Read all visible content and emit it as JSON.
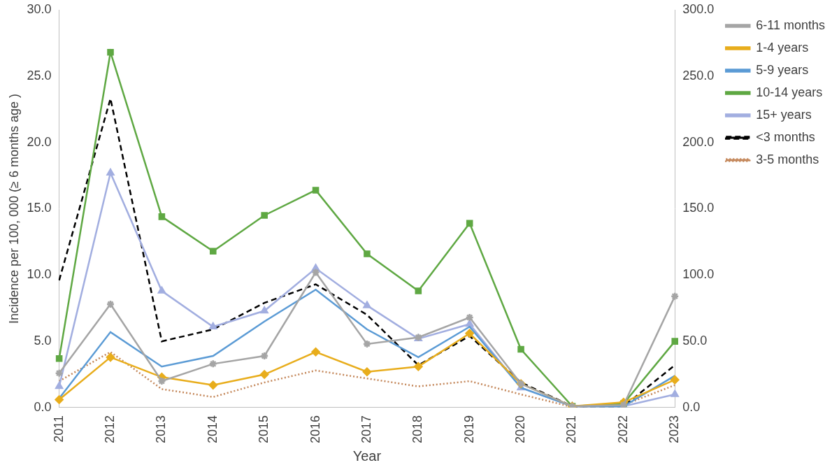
{
  "chart_data": {
    "type": "line",
    "x_label": "Year",
    "y_label": "Incidence per 100, 000 (≥ 6 months age )",
    "categories": [
      "2011",
      "2012",
      "2013",
      "2014",
      "2015",
      "2016",
      "2017",
      "2018",
      "2019",
      "2020",
      "2021",
      "2022",
      "2023"
    ],
    "ylim": [
      0,
      30
    ],
    "yticks": [
      {
        "value": 0,
        "label": "0.0"
      },
      {
        "value": 5,
        "label": "5.0"
      },
      {
        "value": 10,
        "label": "10.0"
      },
      {
        "value": 15,
        "label": "15.0"
      },
      {
        "value": 20,
        "label": "20.0"
      },
      {
        "value": 25,
        "label": "25.0"
      },
      {
        "value": 30,
        "label": "30.0"
      }
    ],
    "y2lim": [
      0,
      300
    ],
    "y2ticks": [
      {
        "value": 0,
        "label": "0.0"
      },
      {
        "value": 50,
        "label": "50.0"
      },
      {
        "value": 100,
        "label": "100.0"
      },
      {
        "value": 150,
        "label": "150.0"
      },
      {
        "value": 200,
        "label": "200.0"
      },
      {
        "value": 250,
        "label": "250.0"
      },
      {
        "value": 300,
        "label": "300.0"
      }
    ],
    "grid": false,
    "legend": "right",
    "series": [
      {
        "name": "6-11 months",
        "color": "#a5a5a5",
        "marker": "star",
        "line_style": "solid",
        "values": [
          2.6,
          7.8,
          2.0,
          3.3,
          3.9,
          10.2,
          4.8,
          5.3,
          6.8,
          1.8,
          0.1,
          0.2,
          8.4
        ]
      },
      {
        "name": "1-4 years",
        "color": "#e8ad1c",
        "marker": "diamond",
        "line_style": "solid",
        "values": [
          0.6,
          3.8,
          2.3,
          1.7,
          2.5,
          4.2,
          2.7,
          3.1,
          5.6,
          1.8,
          0.1,
          0.4,
          2.1
        ]
      },
      {
        "name": "5-9 years",
        "color": "#5b9bd5",
        "marker": "none",
        "line_style": "solid",
        "values": [
          0.7,
          5.7,
          3.1,
          3.9,
          6.5,
          8.9,
          5.9,
          3.8,
          6.1,
          1.5,
          0.1,
          0.1,
          2.4
        ]
      },
      {
        "name": "10-14 years",
        "color": "#5fa843",
        "marker": "square",
        "line_style": "solid",
        "values": [
          3.7,
          26.8,
          14.4,
          11.8,
          14.5,
          16.4,
          11.6,
          8.8,
          13.9,
          4.4,
          0.1,
          0.3,
          5.0
        ]
      },
      {
        "name": "15+ years",
        "color": "#a2aee0",
        "marker": "triangle",
        "line_style": "solid",
        "values": [
          1.6,
          17.7,
          8.8,
          6.1,
          7.3,
          10.5,
          7.7,
          5.2,
          6.3,
          1.5,
          0.1,
          0.1,
          1.0
        ]
      },
      {
        "name": "<3 months",
        "color": "#000000",
        "marker": "none",
        "line_style": "dashed",
        "axis": "y2",
        "values": [
          96,
          233,
          50,
          59,
          79,
          93,
          70,
          32,
          54,
          19,
          1,
          1,
          32
        ]
      },
      {
        "name": "3-5 months",
        "color": "#c4875a",
        "marker": "none",
        "line_style": "dotted",
        "axis": "y2",
        "values": [
          20,
          42,
          14,
          8,
          19,
          28,
          22,
          16,
          20,
          10,
          0.5,
          2,
          17
        ]
      }
    ]
  }
}
